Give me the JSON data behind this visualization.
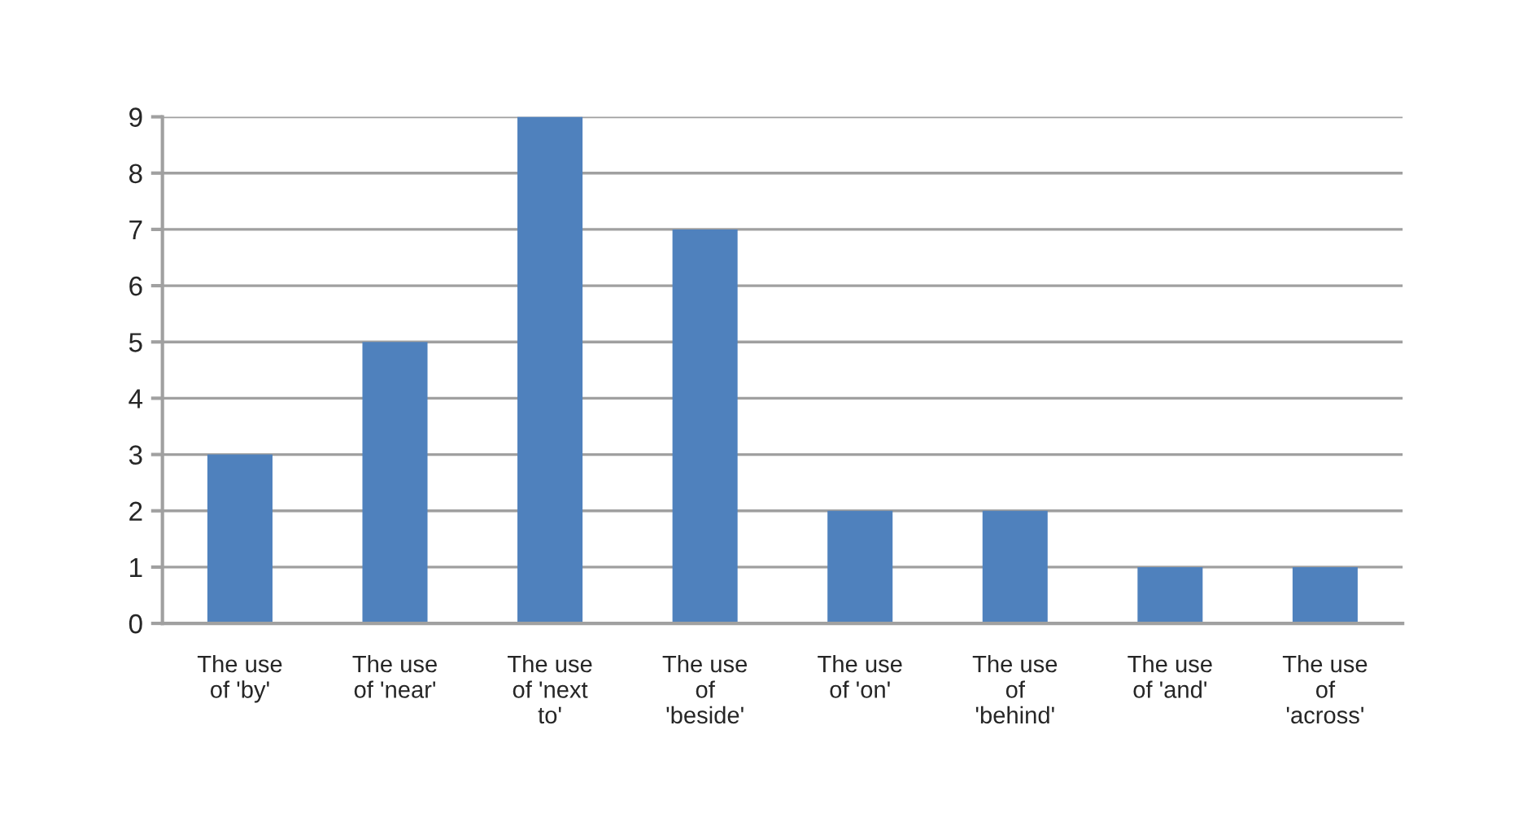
{
  "chart_data": {
    "type": "bar",
    "categories": [
      "The use of 'by'",
      "The use of 'near'",
      "The use of 'next to'",
      "The use of 'beside'",
      "The use of 'on'",
      "The use of 'behind'",
      "The use of 'and'",
      "The use of 'across'"
    ],
    "values": [
      3,
      5,
      9,
      7,
      2,
      2,
      1,
      1
    ],
    "color": "#4f81bd",
    "ylim": [
      0,
      9
    ],
    "yticks": [
      0,
      1,
      2,
      3,
      4,
      5,
      6,
      7,
      8,
      9
    ],
    "grid": "y"
  }
}
